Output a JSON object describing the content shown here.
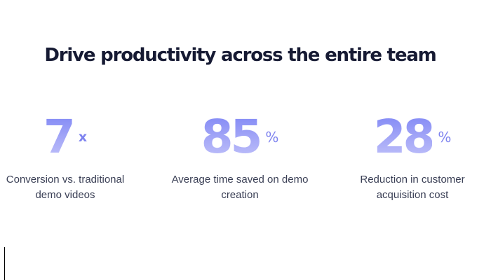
{
  "headline": "Drive productivity across the entire team",
  "stats": [
    {
      "value": "7",
      "unit": "x",
      "caption_line1": "Conversion vs. traditional",
      "caption_line2": "demo videos"
    },
    {
      "value": "85",
      "unit": "%",
      "caption_line1": "Average time saved on demo",
      "caption_line2": "creation"
    },
    {
      "value": "28",
      "unit": "%",
      "caption_line1": "Reduction in customer",
      "caption_line2": "acquisition cost"
    }
  ],
  "colors": {
    "headline": "#161a33",
    "accent": "#7e83ef",
    "caption": "#3a3f55"
  }
}
